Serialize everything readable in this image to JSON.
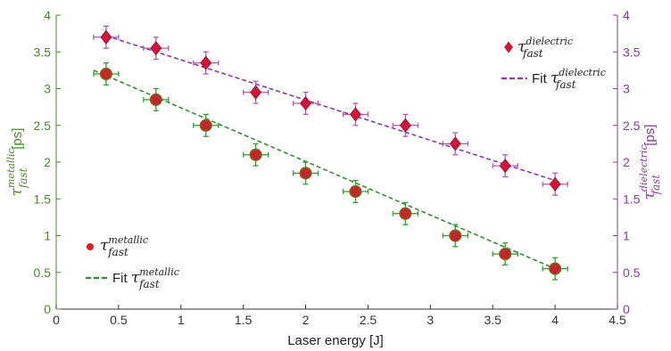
{
  "chart_data": {
    "type": "scatter",
    "xlabel": "Laser energy [J]",
    "ylabel_left": {
      "base": "τ",
      "sub": "fast",
      "sup": "metallic",
      "unit": "[ps]"
    },
    "ylabel_right": {
      "base": "τ",
      "sub": "fast",
      "sup": "dielectric",
      "unit": "[ps]"
    },
    "xlim": [
      0,
      4.5
    ],
    "ylim_left": [
      0,
      4
    ],
    "ylim_right": [
      0,
      4
    ],
    "x_ticks": [
      "0",
      "0.5",
      "1",
      "1.5",
      "2",
      "2.5",
      "3",
      "3.5",
      "4",
      "4.5"
    ],
    "y_ticks_left": [
      "0",
      "0.5",
      "1",
      "1.5",
      "2",
      "2.5",
      "3",
      "3.5",
      "4"
    ],
    "y_ticks_right": [
      "0",
      "0.5",
      "1",
      "1.5",
      "2",
      "2.5",
      "3",
      "3.5",
      "4"
    ],
    "grid": false,
    "colors": {
      "left_axis": "#4a8a2a",
      "right_axis": "#8a3a9a",
      "metallic_marker": "#c0282b",
      "metallic_fit": "#3a8a3a",
      "dielectric_marker": "#d0153a",
      "dielectric_fit": "#8a3aa8",
      "error_bar_metallic": "#2e9e2e",
      "error_bar_dielectric": "#b05ab8",
      "bottom_axis": "#333333"
    },
    "series": [
      {
        "key": "metallic",
        "axis": "left",
        "marker": "circle",
        "legend": {
          "base": "τ",
          "sub": "fast",
          "sup": "metallic"
        },
        "x": [
          0.4,
          0.8,
          1.2,
          1.6,
          2.0,
          2.4,
          2.8,
          3.2,
          3.6,
          4.0
        ],
        "y": [
          3.2,
          2.85,
          2.5,
          2.1,
          1.85,
          1.6,
          1.3,
          1.0,
          0.75,
          0.55
        ],
        "x_err": 0.1,
        "y_err": 0.15
      },
      {
        "key": "dielectric",
        "axis": "right",
        "marker": "diamond",
        "legend": {
          "base": "τ",
          "sub": "fast",
          "sup": "dielectric"
        },
        "x": [
          0.4,
          0.8,
          1.2,
          1.6,
          2.0,
          2.4,
          2.8,
          3.2,
          3.6,
          4.0
        ],
        "y": [
          3.7,
          3.55,
          3.35,
          2.95,
          2.8,
          2.65,
          2.5,
          2.25,
          1.95,
          1.7
        ],
        "x_err": 0.1,
        "y_err": 0.15
      }
    ],
    "fits": [
      {
        "key": "metallic",
        "axis": "left",
        "style": "dashed",
        "legend": {
          "prefix": "Fit ",
          "base": "τ",
          "sub": "fast",
          "sup": "metallic"
        },
        "x": [
          0.3,
          4.0
        ],
        "y": [
          3.25,
          0.55
        ]
      },
      {
        "key": "dielectric",
        "axis": "right",
        "style": "dashed",
        "legend": {
          "prefix": "Fit ",
          "base": "τ",
          "sub": "fast",
          "sup": "dielectric"
        },
        "x": [
          0.4,
          4.0
        ],
        "y": [
          3.72,
          1.75
        ]
      }
    ],
    "legends": [
      {
        "position": "top-right",
        "entries": [
          "series:dielectric",
          "fit:dielectric"
        ]
      },
      {
        "position": "bottom-left",
        "entries": [
          "series:metallic",
          "fit:metallic"
        ]
      }
    ]
  }
}
